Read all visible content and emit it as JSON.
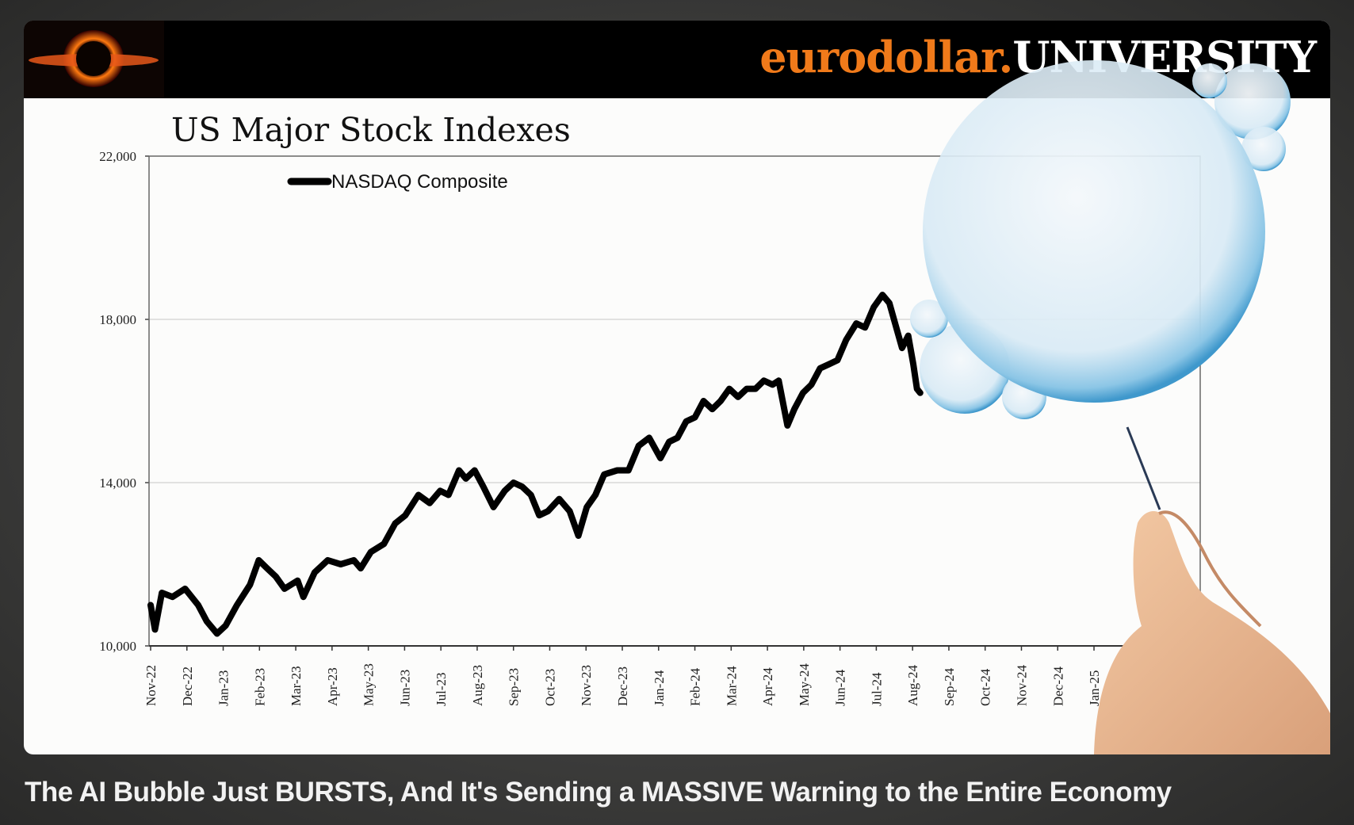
{
  "header": {
    "brand_part1": "eurodollar.",
    "brand_part2": "UNIVERSITY"
  },
  "caption": "The AI Bubble Just BURSTS, And It's Sending a MASSIVE Warning to the Entire Economy",
  "chart_data": {
    "type": "line",
    "title": "US Major Stock Indexes",
    "legend": [
      "NASDAQ Composite"
    ],
    "legend_position": "top-left",
    "xlabel": "",
    "ylabel": "",
    "ylim": [
      10000,
      22000
    ],
    "yticks": [
      10000,
      14000,
      18000,
      22000
    ],
    "ytick_labels": [
      "10,000",
      "14,000",
      "18,000",
      "22,000"
    ],
    "xtick_labels": [
      "Nov-22",
      "Dec-22",
      "Jan-23",
      "Feb-23",
      "Mar-23",
      "Apr-23",
      "May-23",
      "Jun-23",
      "Jul-23",
      "Aug-23",
      "Sep-23",
      "Oct-23",
      "Nov-23",
      "Dec-23",
      "Jan-24",
      "Feb-24",
      "Mar-24",
      "Apr-24",
      "May-24",
      "Jun-24",
      "Jul-24",
      "Aug-24",
      "Sep-24",
      "Oct-24",
      "Nov-24",
      "Dec-24",
      "Jan-25"
    ],
    "x_unit": "months since Nov-22",
    "grid": "horizontal",
    "series": [
      {
        "name": "NASDAQ Composite",
        "color": "#000000",
        "x": [
          0,
          0.12,
          0.31,
          0.6,
          0.95,
          1.31,
          1.55,
          1.83,
          2.07,
          2.38,
          2.74,
          2.98,
          3.21,
          3.45,
          3.69,
          4.05,
          4.21,
          4.52,
          4.88,
          5.24,
          5.6,
          5.79,
          6.07,
          6.43,
          6.74,
          7.02,
          7.38,
          7.69,
          7.98,
          8.21,
          8.5,
          8.69,
          8.93,
          9.17,
          9.45,
          9.76,
          10,
          10.24,
          10.48,
          10.71,
          10.95,
          11.26,
          11.55,
          11.79,
          12.02,
          12.26,
          12.5,
          12.86,
          13.17,
          13.45,
          13.74,
          14.05,
          14.29,
          14.52,
          14.76,
          15,
          15.24,
          15.48,
          15.71,
          15.95,
          16.19,
          16.43,
          16.67,
          16.9,
          17.14,
          17.31,
          17.55,
          17.74,
          17.98,
          18.21,
          18.45,
          18.69,
          18.93,
          19.17,
          19.45,
          19.69,
          19.93,
          20.17,
          20.36,
          20.55,
          20.71,
          20.88,
          21.02,
          21.12,
          21.21
        ],
        "y": [
          11000,
          10400,
          11300,
          11200,
          11400,
          11000,
          10600,
          10300,
          10500,
          11000,
          11500,
          12100,
          11900,
          11700,
          11400,
          11600,
          11200,
          11800,
          12100,
          12000,
          12100,
          11900,
          12300,
          12500,
          13000,
          13200,
          13700,
          13500,
          13800,
          13700,
          14300,
          14100,
          14300,
          13900,
          13400,
          13800,
          14000,
          13900,
          13700,
          13200,
          13300,
          13600,
          13300,
          12700,
          13400,
          13700,
          14200,
          14300,
          14300,
          14900,
          15100,
          14600,
          15000,
          15100,
          15500,
          15600,
          16000,
          15800,
          16000,
          16300,
          16100,
          16300,
          16300,
          16500,
          16400,
          16500,
          15400,
          15800,
          16200,
          16400,
          16800,
          16900,
          17000,
          17500,
          17900,
          17800,
          18300,
          18600,
          18400,
          17800,
          17300,
          17600,
          16900,
          16300,
          16200
        ]
      }
    ]
  }
}
